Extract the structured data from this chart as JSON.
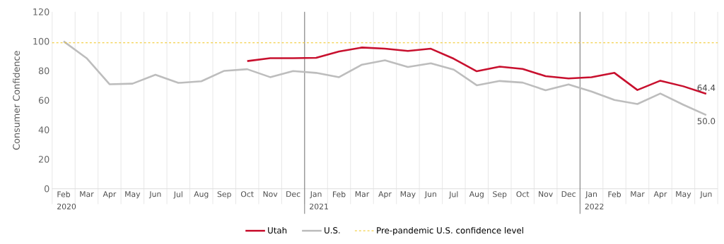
{
  "chart_data": {
    "type": "line",
    "ylabel": "Consumer Confidence",
    "x": [
      "2020-02",
      "2020-03",
      "2020-04",
      "2020-05",
      "2020-06",
      "2020-07",
      "2020-08",
      "2020-09",
      "2020-10",
      "2020-11",
      "2020-12",
      "2021-01",
      "2021-02",
      "2021-03",
      "2021-04",
      "2021-05",
      "2021-06",
      "2021-07",
      "2021-08",
      "2021-09",
      "2021-10",
      "2021-11",
      "2021-12",
      "2022-01",
      "2022-02",
      "2022-03",
      "2022-04",
      "2022-05",
      "2022-06"
    ],
    "series": [
      {
        "name": "Utah",
        "color": "#c8102e",
        "values": [
          null,
          null,
          null,
          null,
          null,
          null,
          null,
          null,
          86.6,
          88.6,
          88.6,
          88.8,
          93.1,
          95.8,
          95.0,
          93.5,
          95.0,
          88.2,
          79.7,
          82.8,
          81.3,
          76.4,
          74.8,
          75.7,
          78.6,
          67.0,
          73.3,
          69.5,
          64.4
        ],
        "value_labels": [
          null,
          null,
          null,
          null,
          null,
          null,
          null,
          null,
          null,
          null,
          null,
          null,
          null,
          null,
          null,
          null,
          null,
          null,
          null,
          null,
          null,
          null,
          null,
          null,
          null,
          null,
          null,
          null,
          "64.4"
        ]
      },
      {
        "name": "U.S.",
        "color": "#bdbdbd",
        "values": [
          100,
          88.6,
          70.9,
          71.3,
          77.3,
          71.8,
          72.9,
          80.0,
          81.1,
          75.7,
          79.8,
          78.6,
          75.7,
          84.2,
          87.1,
          82.6,
          85.1,
          80.8,
          70.2,
          73.1,
          72.0,
          66.8,
          70.8,
          66.0,
          60.2,
          57.5,
          64.6,
          57.0,
          50.0
        ],
        "value_labels": [
          null,
          null,
          null,
          null,
          null,
          null,
          null,
          null,
          null,
          null,
          null,
          null,
          null,
          null,
          null,
          null,
          null,
          null,
          null,
          null,
          null,
          null,
          null,
          null,
          null,
          null,
          null,
          null,
          "50.0"
        ]
      }
    ],
    "ref_lines": [
      {
        "axis": "y",
        "value": 99,
        "label": "Pre-pandemic U.S. confidence level",
        "color": "#f0c419",
        "line_style": "dashed"
      },
      {
        "axis": "x",
        "value": "2020-12-16",
        "color": "#555555"
      },
      {
        "axis": "x",
        "value": "2021-12-16",
        "color": "#555555"
      }
    ],
    "annotations": [
      "2020",
      "2021",
      "2022"
    ],
    "xlim": [
      "2020-01-16",
      "2022-06-16"
    ],
    "xticks": [
      {
        "value": "2020-02",
        "label": "Feb"
      },
      {
        "value": "2020-03",
        "label": "Mar"
      },
      {
        "value": "2020-04",
        "label": "Apr"
      },
      {
        "value": "2020-05",
        "label": "May"
      },
      {
        "value": "2020-06",
        "label": "Jun"
      },
      {
        "value": "2020-07",
        "label": "Jul"
      },
      {
        "value": "2020-08",
        "label": "Aug"
      },
      {
        "value": "2020-09",
        "label": "Sep"
      },
      {
        "value": "2020-10",
        "label": "Oct"
      },
      {
        "value": "2020-11",
        "label": "Nov"
      },
      {
        "value": "2020-12",
        "label": "Dec"
      },
      {
        "value": "2021-01",
        "label": "Jan"
      },
      {
        "value": "2021-02",
        "label": "Feb"
      },
      {
        "value": "2021-03",
        "label": "Mar"
      },
      {
        "value": "2021-04",
        "label": "Apr"
      },
      {
        "value": "2021-05",
        "label": "May"
      },
      {
        "value": "2021-06",
        "label": "Jun"
      },
      {
        "value": "2021-07",
        "label": "Jul"
      },
      {
        "value": "2021-08",
        "label": "Aug"
      },
      {
        "value": "2021-09",
        "label": "Sep"
      },
      {
        "value": "2021-10",
        "label": "Oct"
      },
      {
        "value": "2021-11",
        "label": "Nov"
      },
      {
        "value": "2021-12",
        "label": "Dec"
      },
      {
        "value": "2022-01",
        "label": "Jan"
      },
      {
        "value": "2022-02",
        "label": "Feb"
      },
      {
        "value": "2022-03",
        "label": "Mar"
      },
      {
        "value": "2022-04",
        "label": "Apr"
      },
      {
        "value": "2022-05",
        "label": "May"
      },
      {
        "value": "2022-06",
        "label": "Jun"
      }
    ],
    "ylim": [
      0,
      120
    ],
    "yticks": [
      0,
      20,
      40,
      60,
      80,
      100,
      120
    ],
    "grid": "x",
    "legend": "bottom",
    "line_style": "solid",
    "marker": "none"
  }
}
